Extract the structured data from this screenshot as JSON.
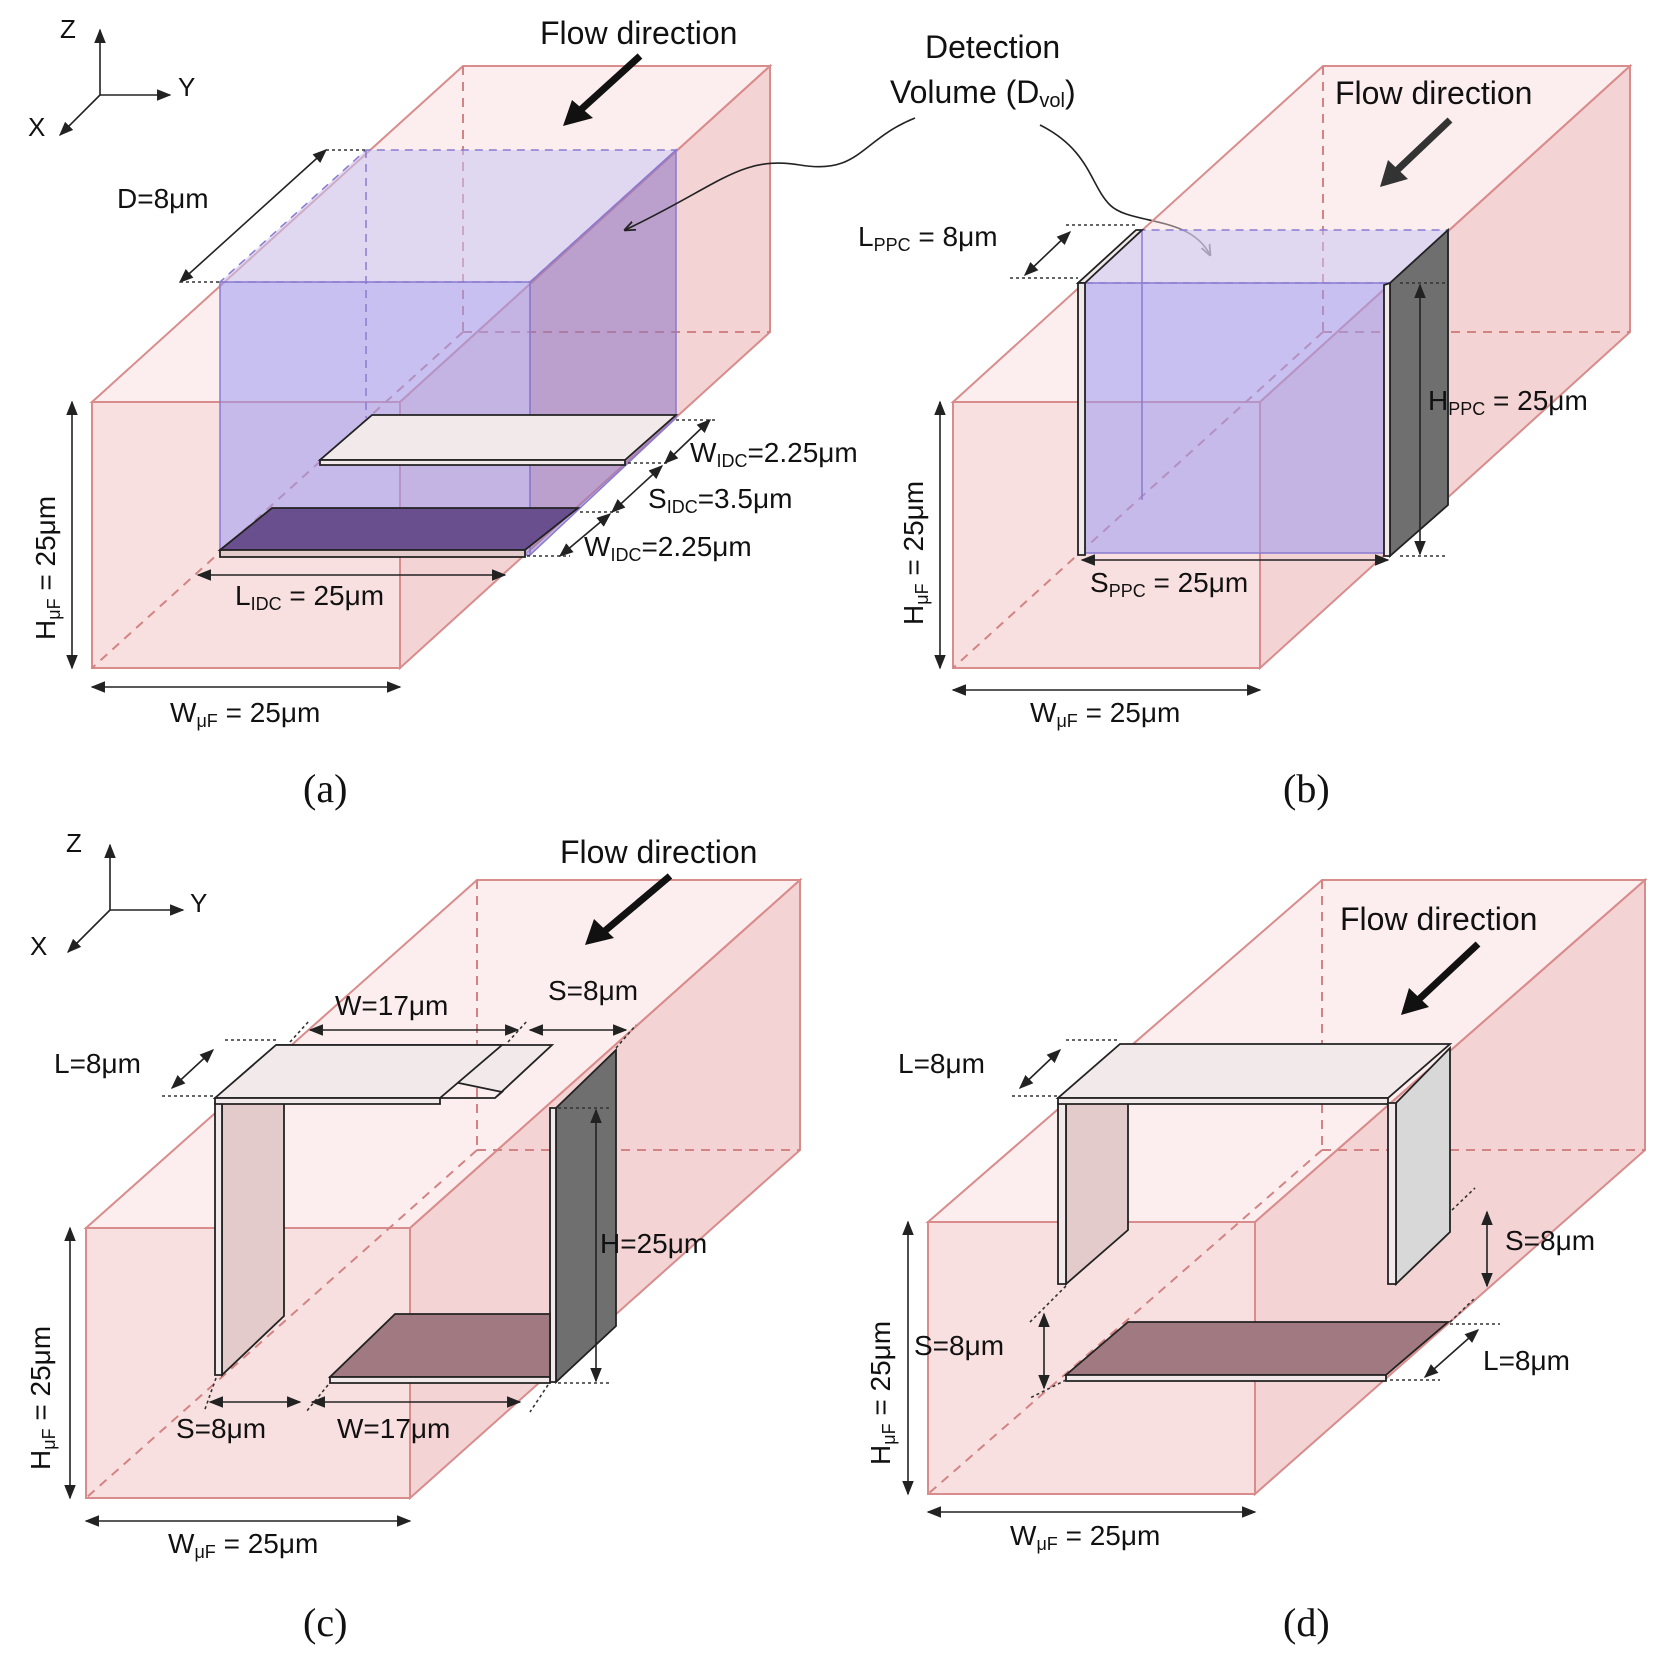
{
  "axes": {
    "x": "X",
    "y": "Y",
    "z": "Z"
  },
  "panel_a": {
    "caption": "(a)",
    "flow": "Flow direction",
    "detection_line1": "Detection",
    "detection_line2": "Volume (D",
    "detection_sub": "vol",
    "detection_close": ")",
    "d": "D=8μm",
    "widc1_main": "W",
    "widc1_sub": "IDC",
    "widc1_val": "=2.25μm",
    "sidc_main": "S",
    "sidc_sub": "IDC",
    "sidc_val": "=3.5μm",
    "widc2_main": "W",
    "widc2_sub": "IDC",
    "widc2_val": "=2.25μm",
    "lidc_main": "L",
    "lidc_sub": "IDC",
    "lidc_val": " = 25μm",
    "h_main": "H",
    "h_sub": "μF",
    "h_val": " = 25μm",
    "w_main": "W",
    "w_sub": "μF",
    "w_val": " = 25μm"
  },
  "panel_b": {
    "caption": "(b)",
    "flow": "Flow direction",
    "lppc_main": "L",
    "lppc_sub": "PPC",
    "lppc_val": " = 8μm",
    "hppc_main": "H",
    "hppc_sub": "PPC",
    "hppc_val": " = 25μm",
    "sppc_main": "S",
    "sppc_sub": "PPC",
    "sppc_val": " = 25μm",
    "h_main": "H",
    "h_sub": "μF",
    "h_val": " = 25μm",
    "w_main": "W",
    "w_sub": "μF",
    "w_val": " = 25μm"
  },
  "panel_c": {
    "caption": "(c)",
    "flow": "Flow direction",
    "w_top": "W=17μm",
    "s_top": "S=8μm",
    "l": "L=8μm",
    "h": "H=25μm",
    "s_bottom": "S=8μm",
    "w_bottom": "W=17μm",
    "h_main": "H",
    "h_sub": "μF",
    "h_val": " = 25μm",
    "w_main": "W",
    "w_sub": "μF",
    "w_val": " = 25μm"
  },
  "panel_d": {
    "caption": "(d)",
    "flow": "Flow direction",
    "l_top": "L=8μm",
    "s_right": "S=8μm",
    "s_left": "S=8μm",
    "l_bottom": "L=8μm",
    "h_main": "H",
    "h_sub": "μF",
    "h_val": " = 25μm",
    "w_main": "W",
    "w_sub": "μF",
    "w_val": " = 25μm"
  }
}
